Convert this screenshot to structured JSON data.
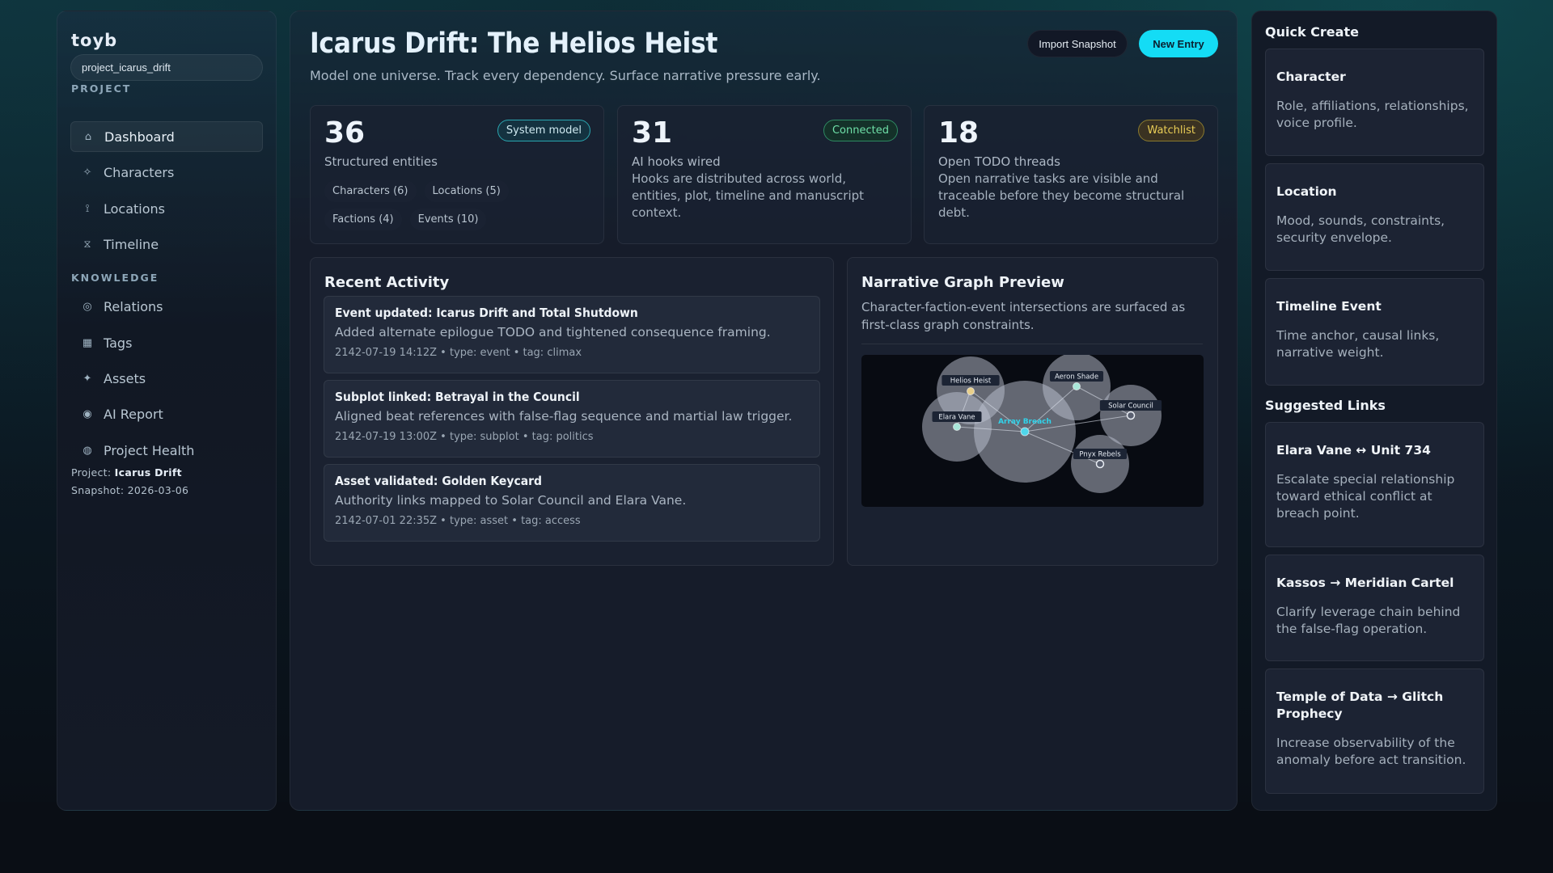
{
  "sidebar": {
    "logo": "toyb",
    "project_input": "project_icarus_drift",
    "section_project": "PROJECT",
    "section_knowledge": "KNOWLEDGE",
    "items": [
      {
        "label": "Dashboard",
        "icon": "⌂"
      },
      {
        "label": "Characters",
        "icon": "✧"
      },
      {
        "label": "Locations",
        "icon": "⟟"
      },
      {
        "label": "Timeline",
        "icon": "⧖"
      },
      {
        "label": "Relations",
        "icon": "◎"
      },
      {
        "label": "Tags",
        "icon": "▦"
      },
      {
        "label": "Assets",
        "icon": "✦"
      },
      {
        "label": "AI Report",
        "icon": "◉"
      },
      {
        "label": "Project Health",
        "icon": "◍"
      }
    ],
    "project_label": "Project:",
    "project_name": "Icarus Drift",
    "snapshot": "Snapshot: 2026-03-06"
  },
  "header": {
    "title": "Icarus Drift: The Helios Heist",
    "subtitle": "Model one universe. Track every dependency. Surface narrative pressure early.",
    "import_label": "Import Snapshot",
    "new_label": "New Entry"
  },
  "stats": [
    {
      "num": "36",
      "label": "Structured entities",
      "badge": "System model",
      "chips": [
        "Characters (6)",
        "Locations (5)",
        "Factions (4)",
        "Events (10)"
      ]
    },
    {
      "num": "31",
      "label": "AI hooks wired",
      "badge": "Connected",
      "desc": "Hooks are distributed across world, entities, plot, timeline and manuscript context."
    },
    {
      "num": "18",
      "label": "Open TODO threads",
      "badge": "Watchlist",
      "desc": "Open narrative tasks are visible and traceable before they become structural debt."
    }
  ],
  "activity": {
    "title": "Recent Activity",
    "items": [
      {
        "title": "Event updated: Icarus Drift and Total Shutdown",
        "desc": "Added alternate epilogue TODO and tightened consequence framing.",
        "meta": "2142-07-19 14:12Z • type: event • tag: climax"
      },
      {
        "title": "Subplot linked: Betrayal in the Council",
        "desc": "Aligned beat references with false-flag sequence and martial law trigger.",
        "meta": "2142-07-19 13:00Z • type: subplot • tag: politics"
      },
      {
        "title": "Asset validated: Golden Keycard",
        "desc": "Authority links mapped to Solar Council and Elara Vane.",
        "meta": "2142-07-01 22:35Z • type: asset • tag: access"
      }
    ]
  },
  "graph": {
    "title": "Narrative Graph Preview",
    "desc": "Character-faction-event intersections are surfaced as first-class graph constraints.",
    "nodes": [
      {
        "label": "Helios Heist",
        "color": "#e8cf8a"
      },
      {
        "label": "Elara Vane",
        "color": "#a8e6d8"
      },
      {
        "label": "Array Breach",
        "color": "#4fd6ea",
        "focus": true
      },
      {
        "label": "Aeron Shade",
        "color": "#a8e6d8"
      },
      {
        "label": "Solar Council",
        "color": "hollow"
      },
      {
        "label": "Pnyx Rebels",
        "color": "hollow"
      }
    ],
    "edges": [
      [
        "Array Breach",
        "Helios Heist"
      ],
      [
        "Array Breach",
        "Elara Vane"
      ],
      [
        "Array Breach",
        "Aeron Shade"
      ],
      [
        "Array Breach",
        "Solar Council"
      ],
      [
        "Array Breach",
        "Pnyx Rebels"
      ],
      [
        "Helios Heist",
        "Elara Vane"
      ],
      [
        "Aeron Shade",
        "Solar Council"
      ]
    ]
  },
  "quick_create": {
    "title": "Quick Create",
    "items": [
      {
        "title": "Character",
        "desc": "Role, affiliations, relationships, voice profile."
      },
      {
        "title": "Location",
        "desc": "Mood, sounds, constraints, security envelope."
      },
      {
        "title": "Timeline Event",
        "desc": "Time anchor, causal links, narrative weight."
      }
    ]
  },
  "suggested": {
    "title": "Suggested Links",
    "items": [
      {
        "title": "Elara Vane ↔ Unit 734",
        "desc": "Escalate special relationship toward ethical conflict at breach point."
      },
      {
        "title": "Kassos → Meridian Cartel",
        "desc": "Clarify leverage chain behind the false-flag operation."
      },
      {
        "title": "Temple of Data → Glitch Prophecy",
        "desc": "Increase observability of the anomaly before act transition."
      }
    ]
  },
  "colors": {
    "accent": "#14dcf5",
    "connected": "#6fe0a8",
    "watchlist": "#e9cd56"
  }
}
